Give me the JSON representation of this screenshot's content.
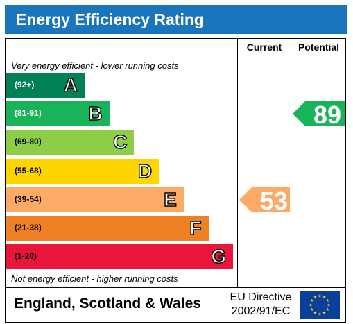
{
  "title": "Energy Efficiency Rating",
  "columns": {
    "current": "Current",
    "potential": "Potential"
  },
  "notes": {
    "top": "Very energy efficient - lower running costs",
    "bottom": "Not energy efficient - higher running costs"
  },
  "footer": {
    "region": "England, Scotland & Wales",
    "directive_line1": "EU Directive",
    "directive_line2": "2002/91/EC"
  },
  "chart_data": {
    "type": "bar",
    "categories": [
      "A",
      "B",
      "C",
      "D",
      "E",
      "F",
      "G"
    ],
    "ranges": [
      "(92+)",
      "(81-91)",
      "(69-80)",
      "(55-68)",
      "(39-54)",
      "(21-38)",
      "(1-20)"
    ],
    "colors": [
      "#008054",
      "#19b459",
      "#8dce46",
      "#ffd500",
      "#fcaa65",
      "#ef8023",
      "#e9153b"
    ],
    "range_text_colors": [
      "#ffffff",
      "#ffffff",
      "#000000",
      "#000000",
      "#000000",
      "#000000",
      "#000000"
    ],
    "current": {
      "value": 53,
      "band": "E",
      "color": "#fcaa65"
    },
    "potential": {
      "value": 89,
      "band": "B",
      "color": "#19b459"
    }
  }
}
